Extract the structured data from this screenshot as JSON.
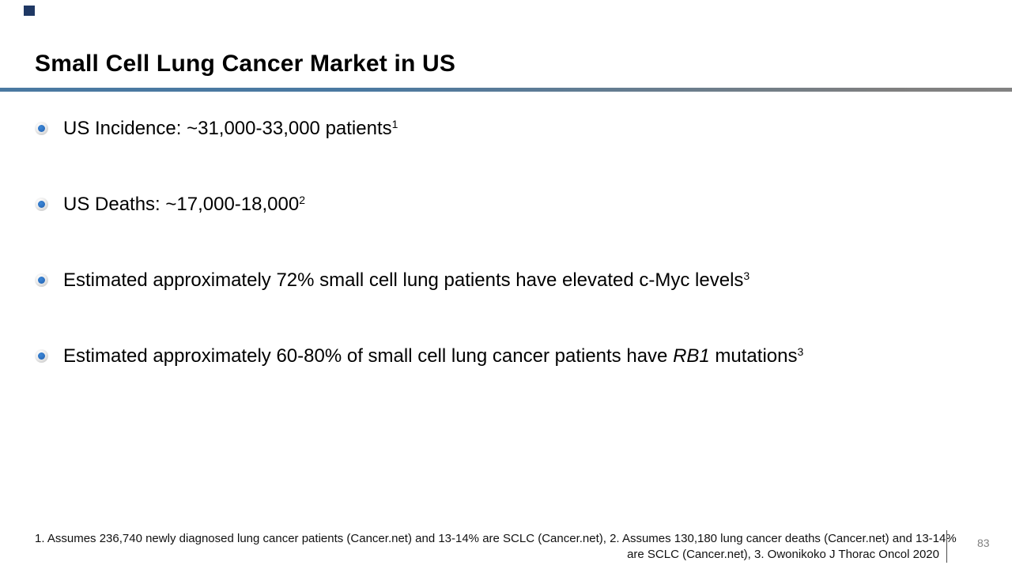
{
  "slide": {
    "title": "Small Cell Lung Cancer Market in US",
    "page_number": "83",
    "colors": {
      "accent_square": "#1f3864",
      "divider_left": "#4a79a1",
      "divider_right": "#7f7f7f",
      "bullet_ring": "#bdbdbd",
      "bullet_dot": "#2d70c0",
      "body_text": "#000000",
      "page_number": "#808080"
    },
    "icons": {
      "bullet_icon": "radio-sphere-bullet"
    },
    "bullets": [
      {
        "text": "US Incidence: ~31,000-33,000 patients",
        "sup": "1"
      },
      {
        "text": "US Deaths: ~17,000-18,000",
        "sup": "2"
      },
      {
        "text": "Estimated approximately 72% small cell lung patients have elevated c-Myc levels",
        "sup": "3"
      },
      {
        "text": "Estimated approximately 60-80% of small cell lung cancer patients have ",
        "italic": "RB1",
        "post": " mutations",
        "sup": "3"
      }
    ],
    "footnotes": {
      "line1": "1. Assumes 236,740 newly diagnosed lung cancer patients (Cancer.net) and 13-14% are SCLC (Cancer.net), 2. Assumes 130,180 lung cancer deaths (Cancer.net) and 13-14%",
      "line2": "are SCLC (Cancer.net), 3. Owonikoko J Thorac Oncol 2020"
    }
  }
}
